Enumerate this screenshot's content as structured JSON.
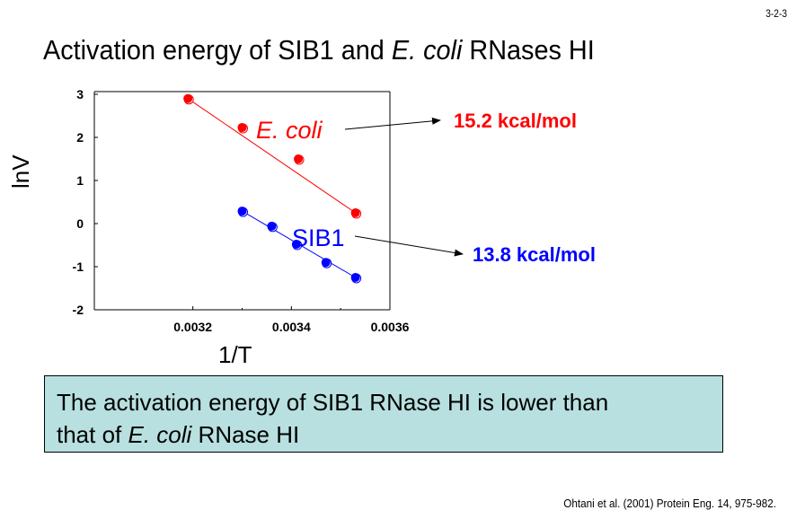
{
  "slide_number": "3-2-3",
  "title": {
    "part1": "Activation energy of SIB1 and ",
    "italic": "E. coli",
    "part2": " RNases HI"
  },
  "chart_data": {
    "type": "scatter",
    "title": "Activation energy of SIB1 and E. coli RNases HI",
    "xlabel": "1/T",
    "ylabel": "lnV",
    "xlim": [
      0.003,
      0.0036
    ],
    "ylim": [
      -2,
      3
    ],
    "xticks": [
      0.0032,
      0.0034,
      0.0036
    ],
    "xtick_labels": [
      "0.0032",
      "0.0034",
      "0.0036"
    ],
    "xminor_ticks": [
      0.0033,
      0.0035
    ],
    "yticks": [
      -2,
      -1,
      0,
      1,
      2,
      3
    ],
    "ytick_labels": [
      "-2",
      "-1",
      "0",
      "1",
      "2",
      "3"
    ],
    "grid": false,
    "series": [
      {
        "name": "E. coli",
        "color": "#ff0000",
        "x": [
          0.00319,
          0.0033,
          0.003414,
          0.00353
        ],
        "y": [
          2.9,
          2.23,
          1.5,
          0.25
        ],
        "fit_line": {
          "x": [
            0.00319,
            0.00353
          ],
          "y": [
            2.9,
            0.25
          ]
        },
        "activation_energy": "15.2 kcal/mol"
      },
      {
        "name": "SIB1",
        "color": "#0000ff",
        "x": [
          0.0033,
          0.00336,
          0.00341,
          0.00347,
          0.00353
        ],
        "y": [
          0.29,
          -0.06,
          -0.48,
          -0.9,
          -1.25
        ],
        "fit_line": {
          "x": [
            0.0033,
            0.00353
          ],
          "y": [
            0.29,
            -1.25
          ]
        },
        "activation_energy": "13.8 kcal/mol"
      }
    ],
    "annotations": [
      {
        "label": "E. coli",
        "value": "15.2 kcal/mol"
      },
      {
        "label": "SIB1",
        "value": "13.8 kcal/mol"
      }
    ]
  },
  "conclusion": {
    "line1": "The activation energy of SIB1 RNase HI is lower than",
    "line2_part1": "that of ",
    "line2_italic": "E. coli",
    "line2_part2": " RNase HI"
  },
  "citation": "Ohtani et al. (2001) Protein Eng. 14, 975-982."
}
